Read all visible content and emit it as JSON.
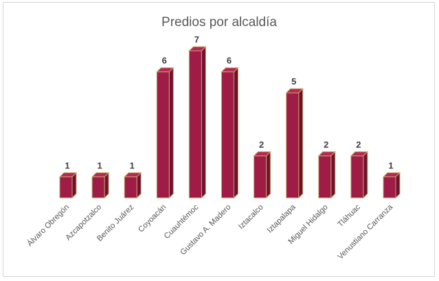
{
  "chart_data": {
    "type": "bar",
    "title": "Predios por alcaldía",
    "categories": [
      "Álvaro Obregón",
      "Azcapotzalco",
      "Benito Juárez",
      "Coyoacán",
      "Cuauhtémoc",
      "Gustavo A. Madero",
      "Iztacalco",
      "Iztapalapa",
      "Miguel Hidalgo",
      "Tláhuac",
      "Venustiano Carranza"
    ],
    "values": [
      1,
      1,
      1,
      6,
      7,
      6,
      2,
      5,
      2,
      2,
      1
    ],
    "ylim": [
      0,
      7
    ],
    "grid": false,
    "legend": "none",
    "colors": {
      "bar_front": "#9e1c45",
      "bar_side": "#6e1230",
      "bar_top": "#b52a55",
      "bar_edge": "#c8a56a"
    }
  }
}
